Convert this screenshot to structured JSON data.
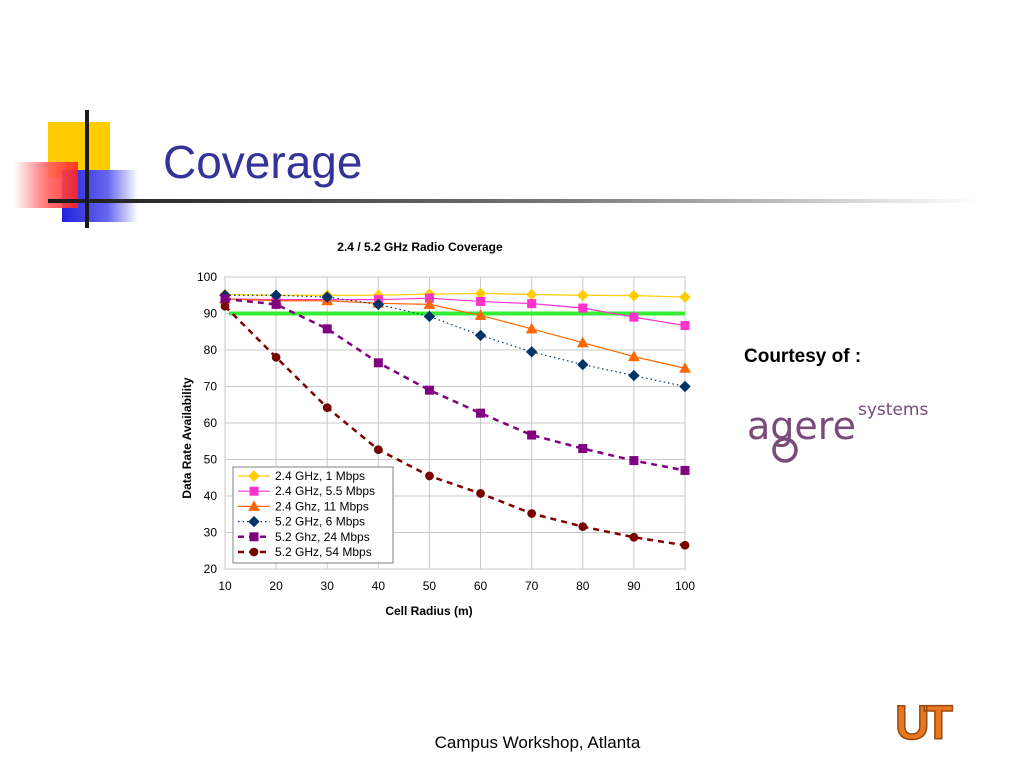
{
  "slide": {
    "title": "Coverage",
    "courtesy": "Courtesy of :",
    "logo_text": "agere",
    "logo_subtext": "systems",
    "footer": "Campus Workshop, Atlanta",
    "ut_logo_text": "UT",
    "title_color": "#333399",
    "ut_color": "#e87722"
  },
  "chart_data": {
    "type": "line",
    "title": "2.4 / 5.2 GHz Radio Coverage",
    "xlabel": "Cell Radius (m)",
    "ylabel": "Data Rate Availability",
    "x": [
      10,
      20,
      30,
      40,
      50,
      60,
      70,
      80,
      90,
      100
    ],
    "xlim": [
      10,
      100
    ],
    "ylim": [
      20,
      100
    ],
    "yticks": [
      20,
      30,
      40,
      50,
      60,
      70,
      80,
      90,
      100
    ],
    "grid": true,
    "legend_position": "bottom-left",
    "threshold_line": {
      "y": 90,
      "color": "#33ee33"
    },
    "series": [
      {
        "name": "2.4 GHz, 1 Mbps",
        "color": "#ffcc00",
        "marker": "diamond",
        "style": "solid",
        "values": [
          95.2,
          95.0,
          95.0,
          95.0,
          95.3,
          95.5,
          95.2,
          95.0,
          94.9,
          94.5
        ]
      },
      {
        "name": "2.4 GHz, 5.5 Mbps",
        "color": "#ff33cc",
        "marker": "square",
        "style": "solid",
        "values": [
          94.0,
          93.8,
          93.8,
          93.8,
          94.2,
          93.3,
          92.7,
          91.5,
          89.0,
          86.7
        ]
      },
      {
        "name": "2.4 Ghz, 11 Mbps",
        "color": "#ff6600",
        "marker": "triangle",
        "style": "solid",
        "values": [
          94.0,
          93.5,
          93.5,
          92.8,
          92.5,
          89.5,
          85.8,
          82.0,
          78.2,
          75.0
        ]
      },
      {
        "name": "5.2 GHz, 6 Mbps",
        "color": "#003366",
        "marker": "diamond",
        "style": "dotted",
        "values": [
          95.0,
          95.0,
          94.5,
          92.5,
          89.2,
          84.0,
          79.5,
          76.0,
          73.0,
          70.0
        ]
      },
      {
        "name": "5.2 Ghz, 24 Mbps",
        "color": "#800080",
        "marker": "square",
        "style": "dashed",
        "values": [
          94.0,
          92.5,
          85.8,
          76.5,
          69.0,
          62.7,
          56.7,
          53.0,
          49.7,
          47.0
        ]
      },
      {
        "name": "5.2 GHz, 54 Mbps",
        "color": "#800000",
        "marker": "circle",
        "style": "dashed",
        "values": [
          92.0,
          78.0,
          64.2,
          52.7,
          45.5,
          40.7,
          35.2,
          31.6,
          28.7,
          26.5
        ]
      }
    ]
  }
}
